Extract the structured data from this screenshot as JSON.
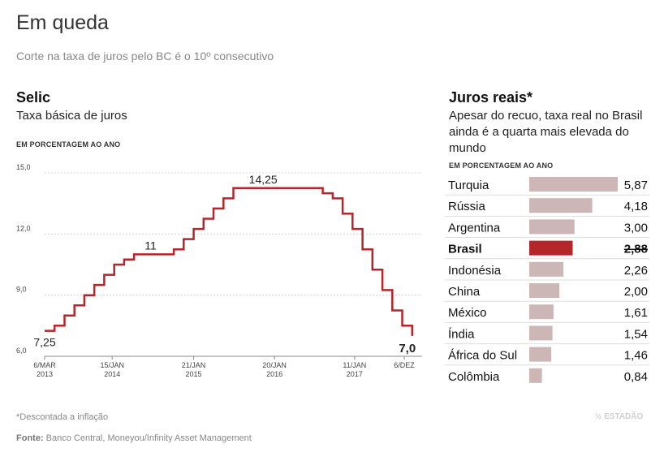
{
  "header": {
    "title": "Em queda",
    "subtitle": "Corte na taxa de juros pelo BC é o 10º consecutivo"
  },
  "selic": {
    "title": "Selic",
    "subtitle": "Taxa básica de juros",
    "unit": "EM PORCENTAGEM AO ANO"
  },
  "reais": {
    "title": "Juros reais*",
    "subtitle": "Apesar do recuo, taxa real no Brasil ainda é a quarta mais elevada do mundo",
    "unit": "EM PORCENTAGEM AO ANO"
  },
  "footer": {
    "footnote": "*Descontada a inflação",
    "source_label": "Fonte:",
    "source_text": "Banco Central, Moneyou/Infinity Asset Management",
    "logo": "ESTADÃO"
  },
  "colors": {
    "selic_line": "#b5262a",
    "bar_default": "#cdb6b6",
    "bar_highlight": "#b5262a",
    "grid": "#cccccc"
  },
  "chart_data": [
    {
      "type": "line",
      "step": true,
      "title": "Selic",
      "subtitle": "Taxa básica de juros",
      "ylabel": "EM PORCENTAGEM AO ANO",
      "ylim": [
        6.0,
        15.0
      ],
      "yticks": [
        "6,0",
        "9,0",
        "12,0",
        "15,0"
      ],
      "yticks_values": [
        6.0,
        9.0,
        12.0,
        15.0
      ],
      "x_range": [
        0,
        57
      ],
      "xticks": [
        {
          "x": 0,
          "line1": "6/MAR",
          "line2": "2013"
        },
        {
          "x": 10.2,
          "line1": "15/JAN",
          "line2": "2014"
        },
        {
          "x": 22.5,
          "line1": "21/JAN",
          "line2": "2015"
        },
        {
          "x": 34.7,
          "line1": "20/JAN",
          "line2": "2016"
        },
        {
          "x": 46.8,
          "line1": "11/JAN",
          "line2": "2017"
        },
        {
          "x": 54.3,
          "line1": "6/DEZ",
          "line2": ""
        }
      ],
      "x": [
        0,
        1.5,
        3,
        4.5,
        6,
        7.5,
        9,
        10.5,
        12,
        13.5,
        15,
        16.5,
        18,
        19.5,
        21,
        22.5,
        24,
        25.5,
        27,
        28.5,
        30,
        31.5,
        33,
        34.5,
        36,
        37.5,
        39,
        40.5,
        42,
        43.5,
        45,
        46.5,
        48,
        49.5,
        51,
        52.5,
        54,
        55.5
      ],
      "values": [
        7.25,
        7.5,
        8.0,
        8.5,
        9.0,
        9.5,
        10.0,
        10.5,
        10.75,
        11.0,
        11.0,
        11.0,
        11.0,
        11.25,
        11.75,
        12.25,
        12.75,
        13.25,
        13.75,
        14.25,
        14.25,
        14.25,
        14.25,
        14.25,
        14.25,
        14.25,
        14.25,
        14.25,
        14.0,
        13.75,
        13.0,
        12.25,
        11.25,
        10.25,
        9.25,
        8.25,
        7.5,
        7.0
      ],
      "annotations": [
        {
          "text": "7,25",
          "x": 0,
          "value": 7.25
        },
        {
          "text": "11",
          "x": 16,
          "value": 11.0
        },
        {
          "text": "14,25",
          "x": 33,
          "value": 14.25
        },
        {
          "text": "7,0",
          "x": 55.5,
          "value": 7.0
        }
      ]
    },
    {
      "type": "bar",
      "orientation": "horizontal",
      "title": "Juros reais*",
      "categories": [
        "Turquia",
        "Rússia",
        "Argentina",
        "Brasil",
        "Indonésia",
        "China",
        "México",
        "Índia",
        "África do Sul",
        "Colômbia"
      ],
      "values": [
        5.87,
        4.18,
        3.0,
        2.88,
        2.26,
        2.0,
        1.61,
        1.54,
        1.46,
        0.84
      ],
      "labels": [
        "5,87",
        "4,18",
        "3,00",
        "2,88",
        "2,26",
        "2,00",
        "1,61",
        "1,54",
        "1,46",
        "0,84"
      ],
      "highlight": "Brasil",
      "xlim": [
        0,
        5.87
      ]
    }
  ]
}
